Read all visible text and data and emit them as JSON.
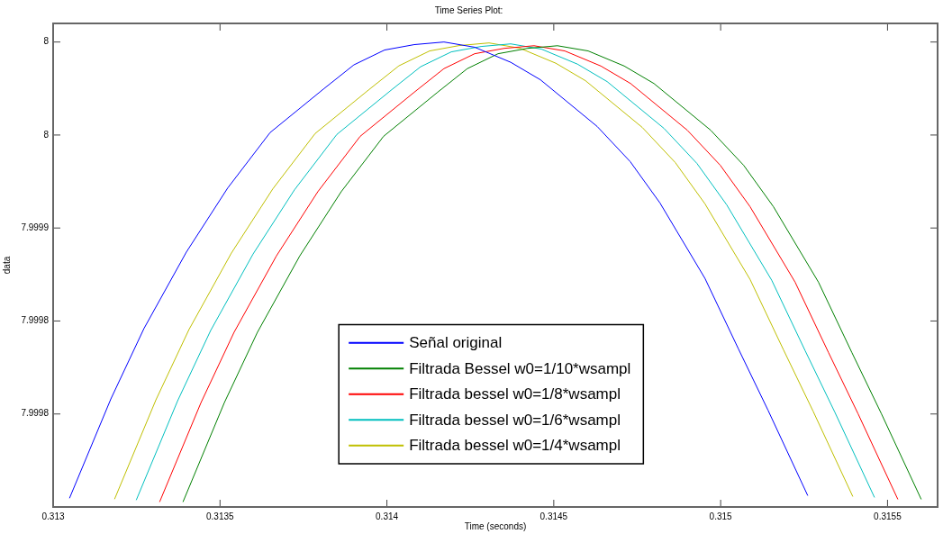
{
  "chart_data": {
    "type": "line",
    "title": "Time Series Plot:",
    "xlabel": "Time (seconds)",
    "ylabel": "data",
    "xlim": [
      0.313,
      0.31565
    ],
    "xticks": [
      0.313,
      0.3135,
      0.314,
      0.3145,
      0.315,
      0.3155
    ],
    "ylim": [
      7.99975,
      8.00001
    ],
    "yticks": [
      {
        "value": 8,
        "label": "8"
      },
      {
        "value": 7.99995,
        "label": "8"
      },
      {
        "value": 7.9999,
        "label": "7.9999"
      },
      {
        "value": 7.99985,
        "label": "7.9998"
      },
      {
        "value": 7.9998,
        "label": "7.9998"
      }
    ],
    "grid": false,
    "legend": "bottom",
    "marker": "none",
    "line_style": "solid",
    "series": [
      {
        "name": "Señal original",
        "color": "#0000ff",
        "x": [
          0.313049,
          0.313173,
          0.313272,
          0.313399,
          0.313523,
          0.31365,
          0.313812,
          0.313901,
          0.313993,
          0.314082,
          0.314171,
          0.314263,
          0.314371,
          0.31446,
          0.31463,
          0.314729,
          0.314818,
          0.314953,
          0.315053,
          0.315142,
          0.315261
        ],
        "values": [
          7.9997547,
          7.9998081,
          7.9998459,
          7.999887,
          7.9999215,
          7.9999513,
          7.999975,
          7.9999877,
          7.9999957,
          7.9999986,
          8,
          7.9999972,
          7.9999891,
          7.9999797,
          7.9999546,
          7.9999357,
          7.9999135,
          7.9998729,
          7.9998351,
          7.999802,
          7.9997561
        ]
      },
      {
        "name": "Filtrada Bessel w0=1/10*wsampl",
        "color": "#008000",
        "x": [
          0.313389,
          0.313513,
          0.313612,
          0.313739,
          0.313863,
          0.31399,
          0.314152,
          0.314241,
          0.314333,
          0.314422,
          0.314511,
          0.314603,
          0.314711,
          0.3148,
          0.31497,
          0.315069,
          0.315158,
          0.315293,
          0.315393,
          0.315482,
          0.315601
        ],
        "values": [
          7.9997527,
          7.9998061,
          7.9998439,
          7.999885,
          7.9999195,
          7.9999493,
          7.999973,
          7.9999857,
          7.9999937,
          7.9999966,
          7.999998,
          7.9999952,
          7.9999871,
          7.9999777,
          7.9999526,
          7.9999337,
          7.9999115,
          7.9998709,
          7.9998331,
          7.9998,
          7.9997541
        ]
      },
      {
        "name": "Filtrada bessel w0=1/8*wsampl",
        "color": "#ff0000",
        "x": [
          0.313319,
          0.313443,
          0.313542,
          0.313669,
          0.313793,
          0.31392,
          0.314082,
          0.314171,
          0.314263,
          0.314352,
          0.314441,
          0.314533,
          0.314641,
          0.31473,
          0.3149,
          0.314999,
          0.315088,
          0.315223,
          0.315323,
          0.315412,
          0.315531
        ],
        "values": [
          7.9997527,
          7.9998061,
          7.9998439,
          7.999885,
          7.9999195,
          7.9999493,
          7.999973,
          7.9999857,
          7.9999937,
          7.9999966,
          7.999998,
          7.9999952,
          7.9999871,
          7.9999777,
          7.9999526,
          7.9999337,
          7.9999115,
          7.9998709,
          7.9998331,
          7.9998,
          7.9997541
        ]
      },
      {
        "name": "Filtrada bessel w0=1/6*wsampl",
        "color": "#00bfbf",
        "x": [
          0.313249,
          0.313373,
          0.313472,
          0.313599,
          0.313723,
          0.31385,
          0.314012,
          0.314101,
          0.314193,
          0.314282,
          0.314371,
          0.314463,
          0.314571,
          0.31466,
          0.31483,
          0.314929,
          0.315018,
          0.315153,
          0.315253,
          0.315342,
          0.315461
        ],
        "values": [
          7.9997537,
          7.9998071,
          7.9998449,
          7.999886,
          7.9999205,
          7.9999503,
          7.999974,
          7.9999867,
          7.9999947,
          7.9999976,
          7.999999,
          7.9999962,
          7.9999881,
          7.9999787,
          7.9999536,
          7.9999347,
          7.9999125,
          7.9998719,
          7.9998341,
          7.999801,
          7.9997551
        ]
      },
      {
        "name": "Filtrada bessel w0=1/4*wsampl",
        "color": "#bfbf00",
        "x": [
          0.313184,
          0.313308,
          0.313407,
          0.313534,
          0.313658,
          0.313785,
          0.313947,
          0.314036,
          0.314128,
          0.314217,
          0.314306,
          0.314398,
          0.314506,
          0.314595,
          0.314765,
          0.314864,
          0.314953,
          0.315088,
          0.315188,
          0.315277,
          0.315396
        ],
        "values": [
          7.9997542,
          7.9998076,
          7.9998454,
          7.9998865,
          7.999921,
          7.9999508,
          7.9999745,
          7.9999872,
          7.9999952,
          7.9999981,
          7.9999995,
          7.9999967,
          7.9999886,
          7.9999792,
          7.9999541,
          7.9999352,
          7.999913,
          7.9998724,
          7.9998346,
          7.9998015,
          7.9997556
        ]
      }
    ]
  }
}
